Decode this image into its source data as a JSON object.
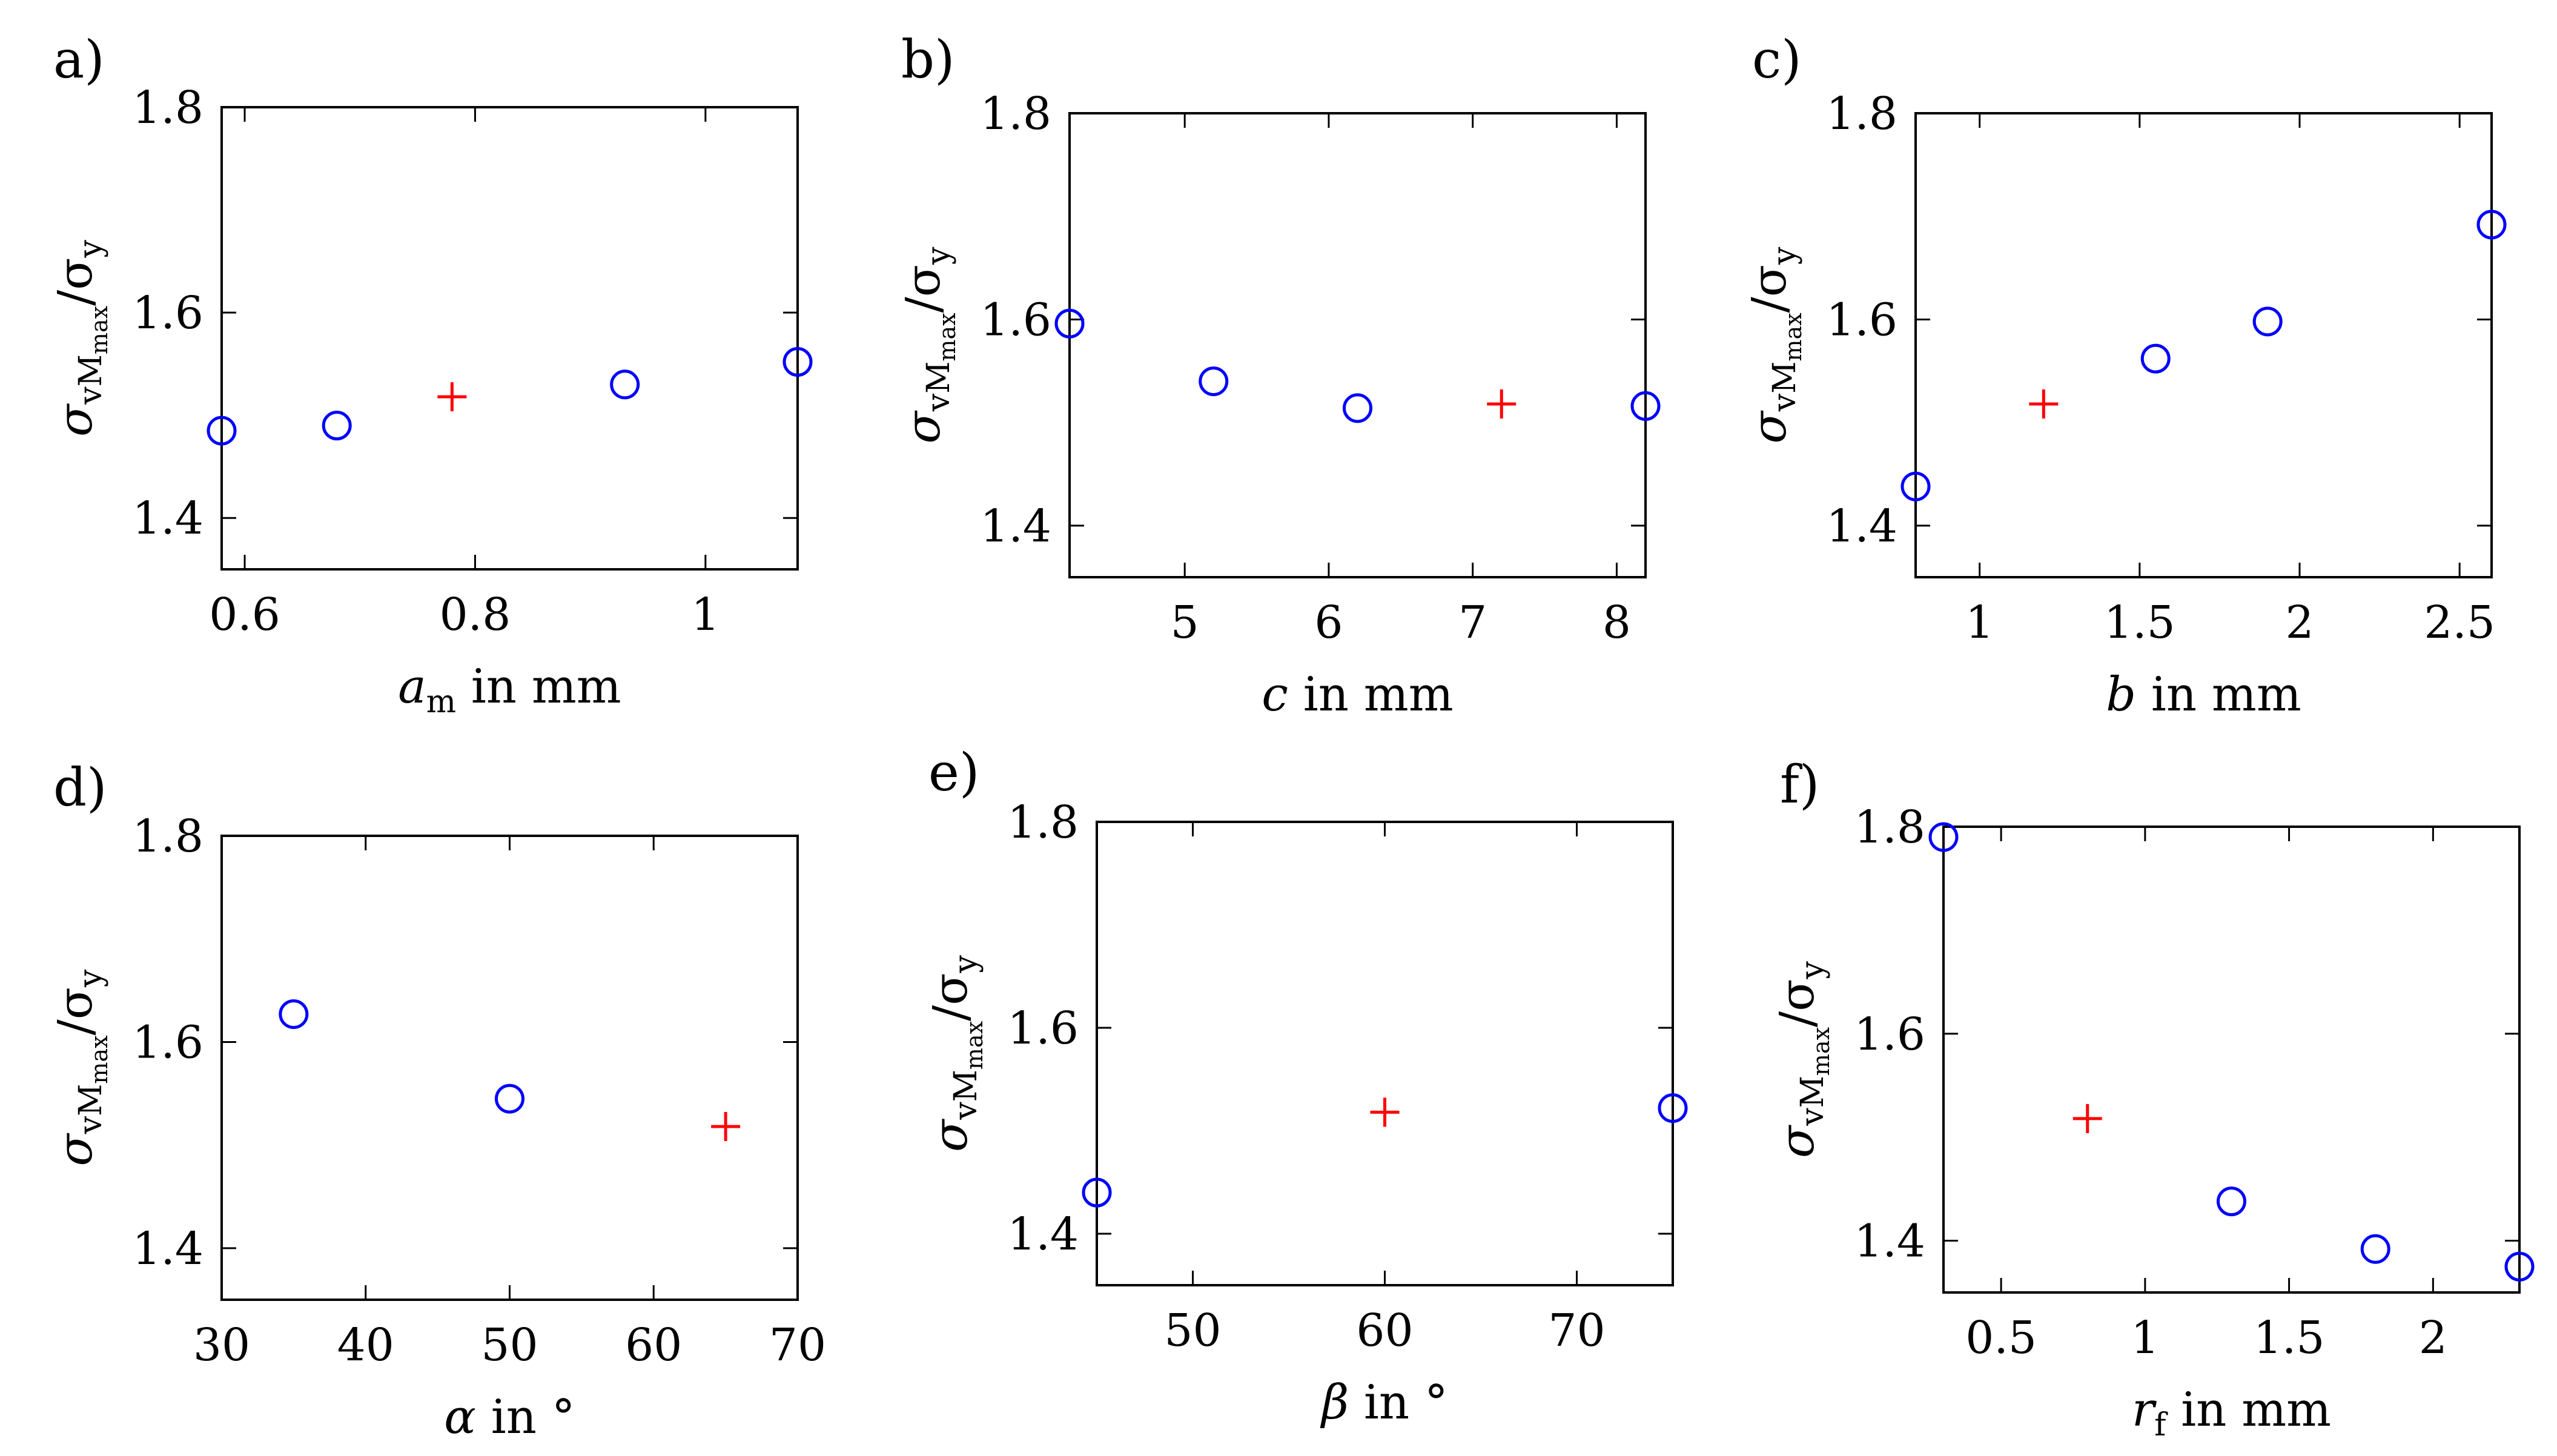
{
  "figure": {
    "series_colors": {
      "variations": "#0000ff",
      "reference": "#ff0000"
    },
    "marker_symbols": {
      "variations": "circle",
      "reference": "plus"
    }
  },
  "chart_data": [
    {
      "type": "scatter",
      "panel_label": "a)",
      "ylabel": {
        "sym": "σ",
        "sub": "vM",
        "subsub": "max",
        "rest": "/σ",
        "sub2": "y"
      },
      "xlabel": {
        "sym": "a",
        "sub": "m",
        "rest": " in mm",
        "italic": true
      },
      "xlim": [
        0.58,
        1.08
      ],
      "ylim": [
        1.35,
        1.8
      ],
      "xticks": [
        0.6,
        0.8,
        1
      ],
      "xtick_labels": [
        "0.6",
        "0.8",
        "1"
      ],
      "yticks": [
        1.4,
        1.6,
        1.8
      ],
      "ytick_labels": [
        "1.4",
        "1.6",
        "1.8"
      ],
      "series": [
        {
          "marker": "circle",
          "x": [
            0.58,
            0.68,
            0.93,
            1.08
          ],
          "y": [
            1.485,
            1.49,
            1.53,
            1.552
          ]
        },
        {
          "marker": "plus",
          "x": [
            0.78
          ],
          "y": [
            1.518
          ]
        }
      ]
    },
    {
      "type": "scatter",
      "panel_label": "b)",
      "ylabel": {
        "sym": "σ",
        "sub": "vM",
        "subsub": "max",
        "rest": "/σ",
        "sub2": "y"
      },
      "xlabel": {
        "sym": "c",
        "sub": "",
        "rest": " in mm",
        "italic": true
      },
      "xlim": [
        4.2,
        8.2
      ],
      "ylim": [
        1.35,
        1.8
      ],
      "xticks": [
        5,
        6,
        7,
        8
      ],
      "xtick_labels": [
        "5",
        "6",
        "7",
        "8"
      ],
      "yticks": [
        1.4,
        1.6,
        1.8
      ],
      "ytick_labels": [
        "1.4",
        "1.6",
        "1.8"
      ],
      "series": [
        {
          "marker": "circle",
          "x": [
            4.2,
            5.2,
            6.2,
            8.2
          ],
          "y": [
            1.596,
            1.54,
            1.514,
            1.516
          ]
        },
        {
          "marker": "plus",
          "x": [
            7.2
          ],
          "y": [
            1.518
          ]
        }
      ]
    },
    {
      "type": "scatter",
      "panel_label": "c)",
      "ylabel": {
        "sym": "σ",
        "sub": "vM",
        "subsub": "max",
        "rest": "/σ",
        "sub2": "y"
      },
      "xlabel": {
        "sym": "b",
        "sub": "",
        "rest": " in mm",
        "italic": true
      },
      "xlim": [
        0.8,
        2.6
      ],
      "ylim": [
        1.35,
        1.8
      ],
      "xticks": [
        1,
        1.5,
        2,
        2.5
      ],
      "xtick_labels": [
        "1",
        "1.5",
        "2",
        "2.5"
      ],
      "yticks": [
        1.4,
        1.6,
        1.8
      ],
      "ytick_labels": [
        "1.4",
        "1.6",
        "1.8"
      ],
      "series": [
        {
          "marker": "circle",
          "x": [
            0.8,
            1.55,
            1.9,
            2.6
          ],
          "y": [
            1.438,
            1.562,
            1.598,
            1.692
          ]
        },
        {
          "marker": "plus",
          "x": [
            1.2
          ],
          "y": [
            1.518
          ]
        }
      ]
    },
    {
      "type": "scatter",
      "panel_label": "d)",
      "ylabel": {
        "sym": "σ",
        "sub": "vM",
        "subsub": "max",
        "rest": "/σ",
        "sub2": "y"
      },
      "xlabel": {
        "sym": "α",
        "sub": "",
        "rest": " in °",
        "italic": true
      },
      "xlim": [
        30,
        70
      ],
      "ylim": [
        1.35,
        1.8
      ],
      "xticks": [
        30,
        40,
        50,
        60,
        70
      ],
      "xtick_labels": [
        "30",
        "40",
        "50",
        "60",
        "70"
      ],
      "yticks": [
        1.4,
        1.6,
        1.8
      ],
      "ytick_labels": [
        "1.4",
        "1.6",
        "1.8"
      ],
      "series": [
        {
          "marker": "circle",
          "x": [
            35,
            50
          ],
          "y": [
            1.627,
            1.545
          ]
        },
        {
          "marker": "plus",
          "x": [
            65
          ],
          "y": [
            1.518
          ]
        }
      ]
    },
    {
      "type": "scatter",
      "panel_label": "e)",
      "ylabel": {
        "sym": "σ",
        "sub": "vM",
        "subsub": "max",
        "rest": "/σ",
        "sub2": "y"
      },
      "xlabel": {
        "sym": "β",
        "sub": "",
        "rest": " in °",
        "italic": true
      },
      "xlim": [
        45,
        75
      ],
      "ylim": [
        1.35,
        1.8
      ],
      "xticks": [
        50,
        60,
        70
      ],
      "xtick_labels": [
        "50",
        "60",
        "70"
      ],
      "yticks": [
        1.4,
        1.6,
        1.8
      ],
      "ytick_labels": [
        "1.4",
        "1.6",
        "1.8"
      ],
      "series": [
        {
          "marker": "circle",
          "x": [
            45,
            75
          ],
          "y": [
            1.44,
            1.522
          ]
        },
        {
          "marker": "plus",
          "x": [
            60
          ],
          "y": [
            1.518
          ]
        }
      ]
    },
    {
      "type": "scatter",
      "panel_label": "f)",
      "ylabel": {
        "sym": "σ",
        "sub": "vM",
        "subsub": "max",
        "rest": "/σ",
        "sub2": "y"
      },
      "xlabel": {
        "sym": "r",
        "sub": "f",
        "rest": " in mm",
        "italic": true
      },
      "xlim": [
        0.3,
        2.3
      ],
      "ylim": [
        1.35,
        1.8
      ],
      "xticks": [
        0.5,
        1,
        1.5,
        2
      ],
      "xtick_labels": [
        "0.5",
        "1",
        "1.5",
        "2"
      ],
      "yticks": [
        1.4,
        1.6,
        1.8
      ],
      "ytick_labels": [
        "1.4",
        "1.6",
        "1.8"
      ],
      "series": [
        {
          "marker": "circle",
          "x": [
            0.3,
            1.3,
            1.8,
            2.3
          ],
          "y": [
            1.79,
            1.438,
            1.392,
            1.375
          ]
        },
        {
          "marker": "plus",
          "x": [
            0.8
          ],
          "y": [
            1.518
          ]
        }
      ]
    }
  ]
}
